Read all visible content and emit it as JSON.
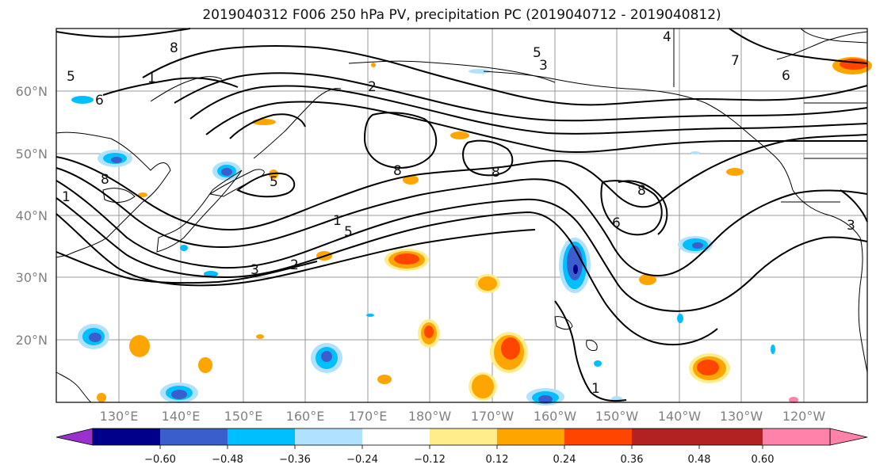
{
  "title": "2019040312 F006 250 hPa PV, precipitation PC (2019040712 - 2019040812)",
  "latitude_labels": [
    "60°N",
    "50°N",
    "40°N",
    "30°N",
    "20°N"
  ],
  "longitude_labels": [
    "130°E",
    "140°E",
    "150°E",
    "160°E",
    "170°E",
    "180°W",
    "170°W",
    "160°W",
    "150°W",
    "140°W",
    "130°W",
    "120°W"
  ],
  "colorbar": {
    "tick_labels": [
      "−0.60",
      "−0.48",
      "−0.36",
      "−0.24",
      "−0.12",
      "0.12",
      "0.24",
      "0.36",
      "0.48",
      "0.60"
    ],
    "colors": [
      "#9932CC",
      "#00008B",
      "#3A5FCD",
      "#00BFFF",
      "#B0E2FF",
      "#FFFFFF",
      "#FFEC8B",
      "#FFA500",
      "#FF4500",
      "#B22222",
      "#FF82AB"
    ]
  },
  "pv_contour_labels": [
    "8",
    "1",
    "2",
    "5",
    "3",
    "4",
    "7",
    "6",
    "8",
    "5",
    "8",
    "8",
    "1",
    "5",
    "2",
    "3",
    "6",
    "8",
    "1",
    "3",
    "1",
    "5",
    "6"
  ]
}
